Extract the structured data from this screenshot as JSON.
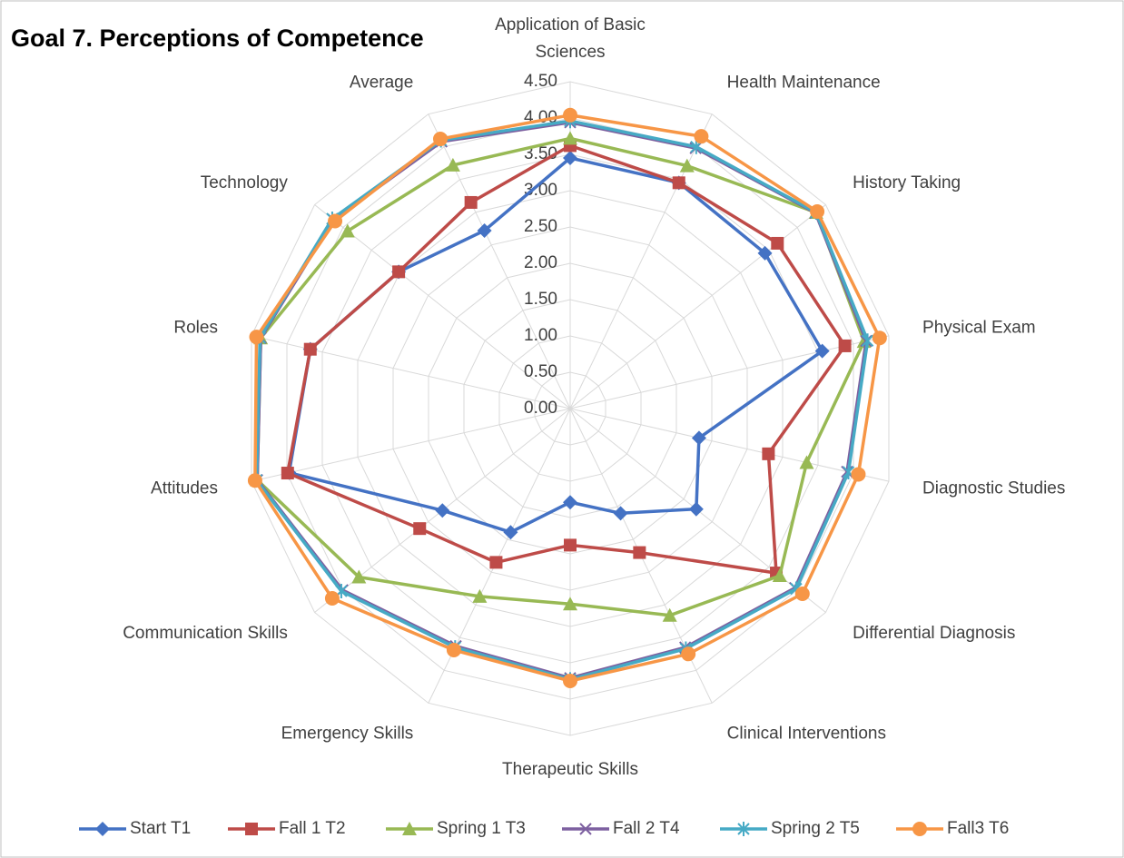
{
  "chart_data": {
    "type": "radar",
    "title": "Goal 7. Perceptions of Competence",
    "categories": [
      "Application of Basic Sciences",
      "Health Maintenance",
      "History Taking",
      "Physical Exam",
      "Diagnostic Studies",
      "Differential Diagnosis",
      "Clinical Interventions",
      "Therapeutic Skills",
      "Emergency Skills",
      "Communication Skills",
      "Attitudes",
      "Roles",
      "Technology",
      "Average"
    ],
    "ylim": [
      0,
      4.5
    ],
    "yticks": [
      {
        "value": 0,
        "label": "0.00"
      },
      {
        "value": 0.5,
        "label": "0.50"
      },
      {
        "value": 1,
        "label": "1.00"
      },
      {
        "value": 1.5,
        "label": "1.50"
      },
      {
        "value": 2,
        "label": "2.00"
      },
      {
        "value": 2.5,
        "label": "2.50"
      },
      {
        "value": 3,
        "label": "3.00"
      },
      {
        "value": 3.5,
        "label": "3.50"
      },
      {
        "value": 4,
        "label": "4.00"
      },
      {
        "value": 4.5,
        "label": "4.50"
      }
    ],
    "grid": true,
    "legend": "bottom",
    "series": [
      {
        "name": "Start T1",
        "color": "#4472c4",
        "marker": "diamond",
        "values": [
          3.45,
          3.45,
          3.43,
          3.56,
          1.82,
          2.22,
          1.6,
          1.29,
          1.89,
          2.25,
          3.97,
          3.67,
          3.02,
          2.72
        ]
      },
      {
        "name": "Fall 1 T2",
        "color": "#be4b48",
        "marker": "square",
        "values": [
          3.62,
          3.45,
          3.65,
          3.88,
          2.8,
          3.63,
          2.2,
          1.88,
          2.35,
          2.65,
          3.99,
          3.67,
          3.02,
          3.15
        ]
      },
      {
        "name": "Spring 1 T3",
        "color": "#98b954",
        "marker": "triangle",
        "values": [
          3.72,
          3.71,
          4.33,
          4.15,
          3.34,
          3.69,
          3.16,
          2.69,
          2.87,
          3.72,
          4.42,
          4.37,
          3.92,
          3.72
        ]
      },
      {
        "name": "Fall 2 T4",
        "color": "#7d60a0",
        "marker": "x",
        "values": [
          3.94,
          3.98,
          4.32,
          4.18,
          3.91,
          3.96,
          3.65,
          3.71,
          3.63,
          4.01,
          4.42,
          4.37,
          4.17,
          4.08
        ]
      },
      {
        "name": "Spring 2 T5",
        "color": "#46aac5",
        "marker": "star",
        "values": [
          3.96,
          4.0,
          4.33,
          4.2,
          3.93,
          3.98,
          3.67,
          3.73,
          3.65,
          4.03,
          4.43,
          4.38,
          4.19,
          4.1
        ]
      },
      {
        "name": "Fall3 T6",
        "color": "#f79646",
        "marker": "circle",
        "values": [
          4.04,
          4.16,
          4.35,
          4.37,
          4.07,
          4.09,
          3.75,
          3.75,
          3.69,
          4.19,
          4.45,
          4.43,
          4.14,
          4.12
        ]
      }
    ]
  }
}
